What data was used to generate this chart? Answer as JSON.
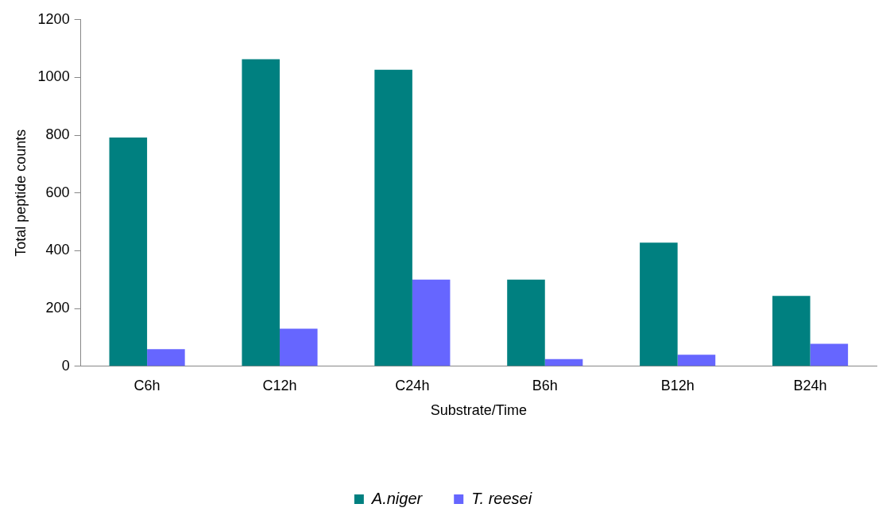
{
  "chart_data": {
    "type": "bar",
    "xlabel": "Substrate/Time",
    "ylabel": "Total peptide counts",
    "categories": [
      "C6h",
      "C12h",
      "C24h",
      "B6h",
      "B12h",
      "B24h"
    ],
    "series": [
      {
        "name": "A.niger",
        "color": "#008080",
        "values": [
          792,
          1063,
          1027,
          300,
          428,
          244
        ]
      },
      {
        "name": "T. reesei",
        "color": "#6666ff",
        "values": [
          59,
          130,
          300,
          25,
          40,
          78
        ]
      }
    ],
    "ylim": [
      0,
      1200
    ],
    "yticks": [
      0,
      200,
      400,
      600,
      800,
      1000,
      1200
    ],
    "grid": false,
    "legend": "bottom"
  }
}
